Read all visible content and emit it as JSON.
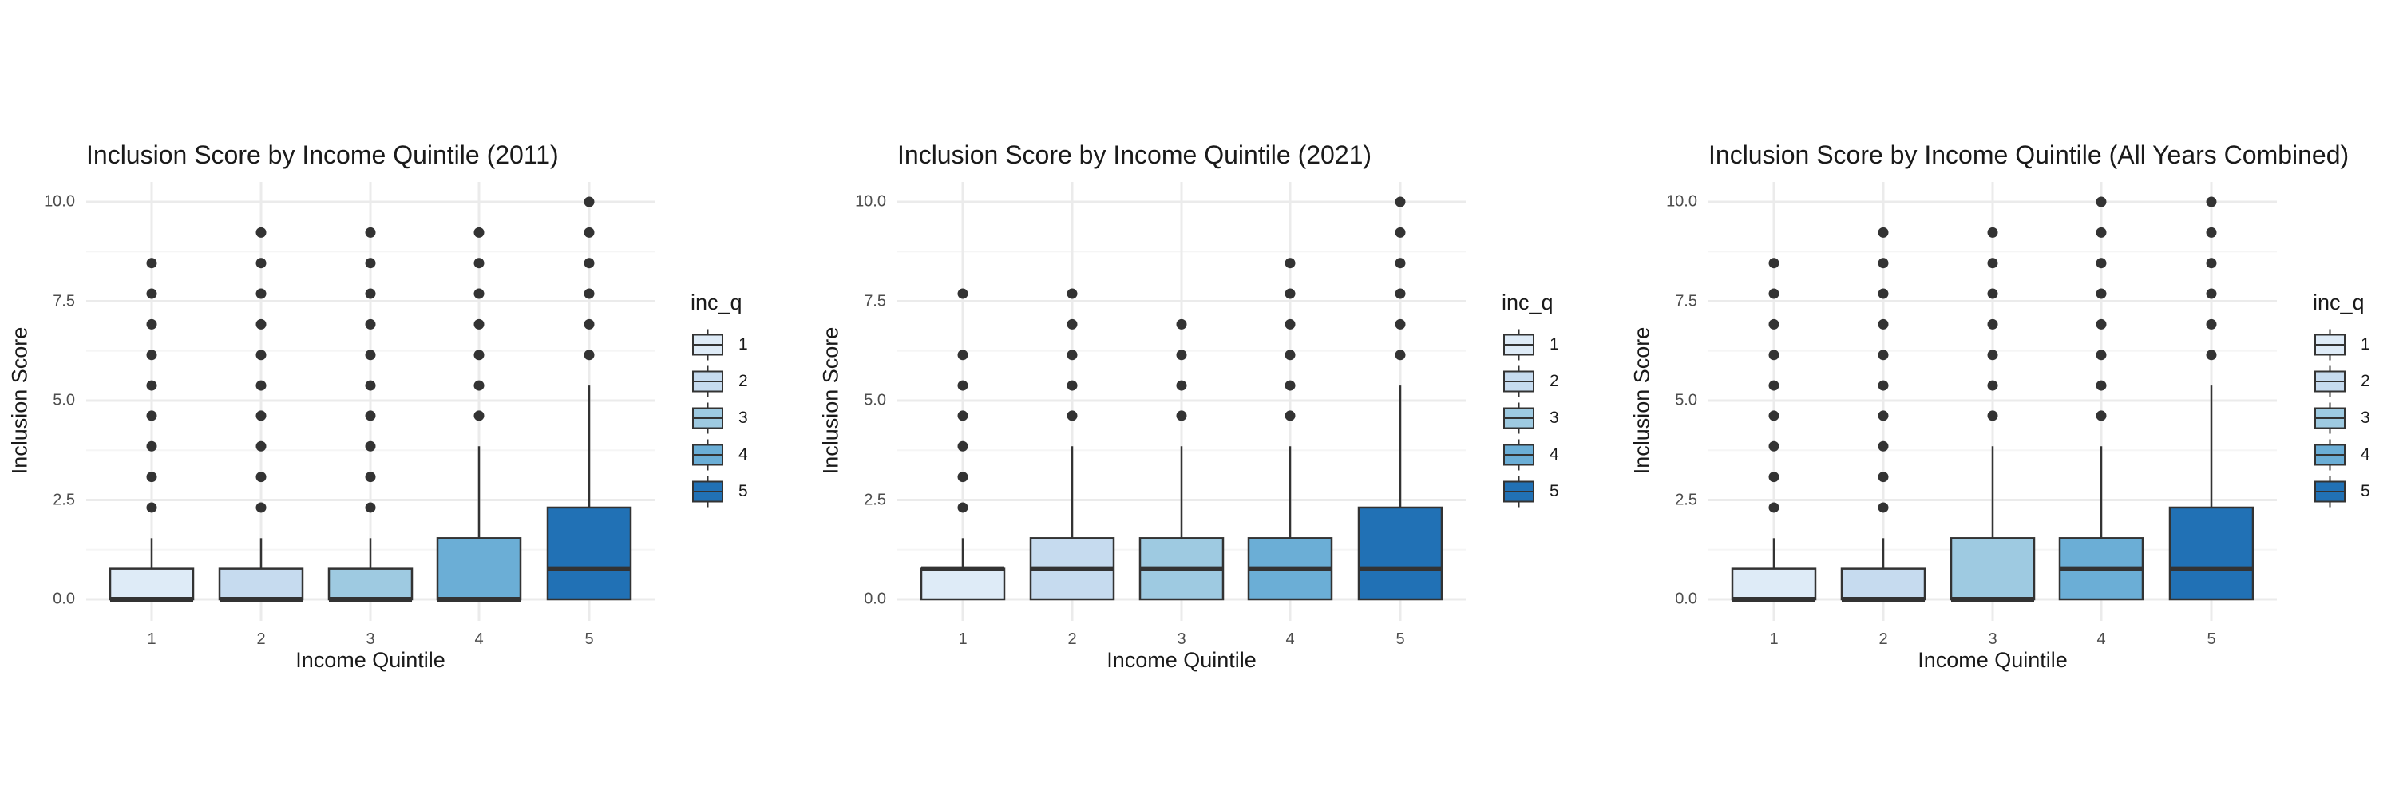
{
  "figure": {
    "panels": [
      {
        "title": "Inclusion Score by Income Quintile (2011)",
        "xlabel": "Income Quintile",
        "ylabel": "Inclusion Score"
      },
      {
        "title": "Inclusion Score by Income Quintile (2021)",
        "xlabel": "Income Quintile",
        "ylabel": "Inclusion Score"
      },
      {
        "title": "Inclusion Score by Income Quintile (All Years Combined)",
        "xlabel": "Income Quintile",
        "ylabel": "Inclusion Score"
      }
    ],
    "legend": {
      "title": "inc_q",
      "items": [
        "1",
        "2",
        "3",
        "4",
        "5"
      ]
    },
    "colors": {
      "fill": [
        "#DEEBF7",
        "#C6DBEF",
        "#9ECAE1",
        "#6BAED6",
        "#2171B5"
      ],
      "outline": "#333333",
      "outlier": "#333333",
      "grid_major": "#EBEBEB",
      "grid_minor": "#F5F5F5"
    },
    "y_ticks": [
      "0.0",
      "2.5",
      "5.0",
      "7.5",
      "10.0"
    ],
    "x_ticks": [
      "1",
      "2",
      "3",
      "4",
      "5"
    ]
  },
  "chart_data": [
    {
      "type": "boxplot",
      "title": "Inclusion Score by Income Quintile (2011)",
      "xlabel": "Income Quintile",
      "ylabel": "Inclusion Score",
      "ylim": [
        0,
        10
      ],
      "legend_title": "inc_q",
      "legend_position": "right",
      "grid": true,
      "categories": [
        "1",
        "2",
        "3",
        "4",
        "5"
      ],
      "boxes": [
        {
          "q1": 0,
          "median": 0,
          "q3": 0.77,
          "whisker_low": 0,
          "whisker_high": 1.54,
          "outliers": [
            2.31,
            3.08,
            3.85,
            4.62,
            5.38,
            6.15,
            6.92,
            7.69,
            8.46
          ]
        },
        {
          "q1": 0,
          "median": 0,
          "q3": 0.77,
          "whisker_low": 0,
          "whisker_high": 1.54,
          "outliers": [
            2.31,
            3.08,
            3.85,
            4.62,
            5.38,
            6.15,
            6.92,
            7.69,
            8.46,
            9.23
          ]
        },
        {
          "q1": 0,
          "median": 0,
          "q3": 0.77,
          "whisker_low": 0,
          "whisker_high": 1.54,
          "outliers": [
            2.31,
            3.08,
            3.85,
            4.62,
            5.38,
            6.15,
            6.92,
            7.69,
            8.46,
            9.23
          ]
        },
        {
          "q1": 0,
          "median": 0,
          "q3": 1.54,
          "whisker_low": 0,
          "whisker_high": 3.85,
          "outliers": [
            4.62,
            5.38,
            6.15,
            6.92,
            7.69,
            8.46,
            9.23
          ]
        },
        {
          "q1": 0,
          "median": 0.77,
          "q3": 2.31,
          "whisker_low": 0,
          "whisker_high": 5.38,
          "outliers": [
            6.15,
            6.92,
            7.69,
            8.46,
            9.23,
            10.0
          ]
        }
      ]
    },
    {
      "type": "boxplot",
      "title": "Inclusion Score by Income Quintile (2021)",
      "xlabel": "Income Quintile",
      "ylabel": "Inclusion Score",
      "ylim": [
        0,
        10
      ],
      "legend_title": "inc_q",
      "legend_position": "right",
      "grid": true,
      "categories": [
        "1",
        "2",
        "3",
        "4",
        "5"
      ],
      "boxes": [
        {
          "q1": 0,
          "median": 0.77,
          "q3": 0.77,
          "whisker_low": 0,
          "whisker_high": 1.54,
          "outliers": [
            2.31,
            3.08,
            3.85,
            4.62,
            5.38,
            6.15,
            7.69
          ]
        },
        {
          "q1": 0,
          "median": 0.77,
          "q3": 1.54,
          "whisker_low": 0,
          "whisker_high": 3.85,
          "outliers": [
            4.62,
            5.38,
            6.15,
            6.92,
            7.69
          ]
        },
        {
          "q1": 0,
          "median": 0.77,
          "q3": 1.54,
          "whisker_low": 0,
          "whisker_high": 3.85,
          "outliers": [
            4.62,
            5.38,
            6.15,
            6.92
          ]
        },
        {
          "q1": 0,
          "median": 0.77,
          "q3": 1.54,
          "whisker_low": 0,
          "whisker_high": 3.85,
          "outliers": [
            4.62,
            5.38,
            6.15,
            6.92,
            7.69,
            8.46
          ]
        },
        {
          "q1": 0,
          "median": 0.77,
          "q3": 2.31,
          "whisker_low": 0,
          "whisker_high": 5.38,
          "outliers": [
            6.15,
            6.92,
            7.69,
            8.46,
            9.23,
            10.0
          ]
        }
      ]
    },
    {
      "type": "boxplot",
      "title": "Inclusion Score by Income Quintile (All Years Combined)",
      "xlabel": "Income Quintile",
      "ylabel": "Inclusion Score",
      "ylim": [
        0,
        10
      ],
      "legend_title": "inc_q",
      "legend_position": "right",
      "grid": true,
      "categories": [
        "1",
        "2",
        "3",
        "4",
        "5"
      ],
      "boxes": [
        {
          "q1": 0,
          "median": 0,
          "q3": 0.77,
          "whisker_low": 0,
          "whisker_high": 1.54,
          "outliers": [
            2.31,
            3.08,
            3.85,
            4.62,
            5.38,
            6.15,
            6.92,
            7.69,
            8.46
          ]
        },
        {
          "q1": 0,
          "median": 0,
          "q3": 0.77,
          "whisker_low": 0,
          "whisker_high": 1.54,
          "outliers": [
            2.31,
            3.08,
            3.85,
            4.62,
            5.38,
            6.15,
            6.92,
            7.69,
            8.46,
            9.23
          ]
        },
        {
          "q1": 0,
          "median": 0,
          "q3": 1.54,
          "whisker_low": 0,
          "whisker_high": 3.85,
          "outliers": [
            4.62,
            5.38,
            6.15,
            6.92,
            7.69,
            8.46,
            9.23
          ]
        },
        {
          "q1": 0,
          "median": 0.77,
          "q3": 1.54,
          "whisker_low": 0,
          "whisker_high": 3.85,
          "outliers": [
            4.62,
            5.38,
            6.15,
            6.92,
            7.69,
            8.46,
            9.23,
            10.0
          ]
        },
        {
          "q1": 0,
          "median": 0.77,
          "q3": 2.31,
          "whisker_low": 0,
          "whisker_high": 5.38,
          "outliers": [
            6.15,
            6.92,
            7.69,
            8.46,
            9.23,
            10.0
          ]
        }
      ]
    }
  ]
}
